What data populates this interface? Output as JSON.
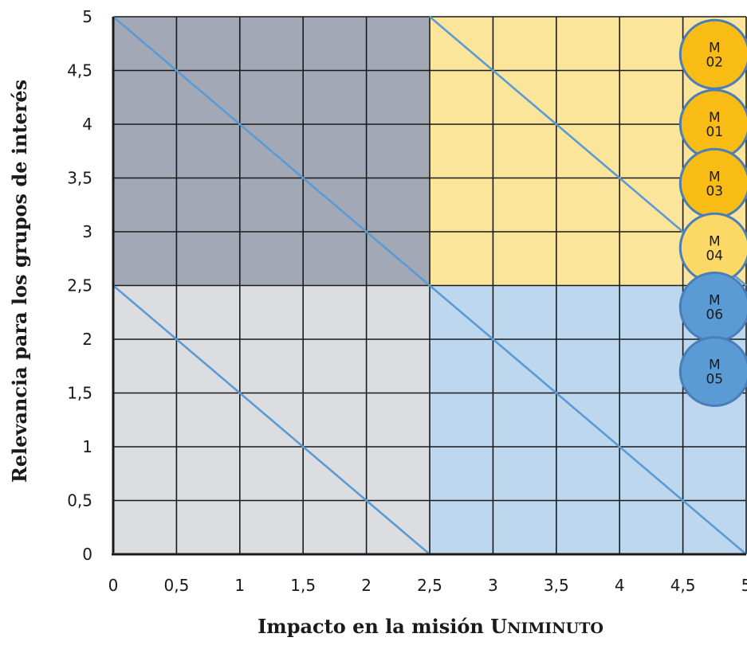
{
  "chart_data": {
    "type": "scatter",
    "xlabel": "Impacto en la misión Uniminuto",
    "xlabel_parts": [
      "Impacto en la misión ",
      "U",
      "NIMINUTO"
    ],
    "ylabel": "Relevancia para los grupos de interés",
    "xlim": [
      0,
      5
    ],
    "ylim": [
      0,
      5
    ],
    "grid": true,
    "grid_step": 0.5,
    "x_ticks": [
      "0",
      "0,5",
      "1",
      "1,5",
      "2",
      "2,5",
      "3",
      "3,5",
      "4",
      "4,5",
      "5"
    ],
    "y_ticks": [
      "0",
      "0,5",
      "1",
      "1,5",
      "2",
      "2,5",
      "3",
      "3,5",
      "4",
      "4,5",
      "5"
    ],
    "quadrants": [
      {
        "x": [
          0,
          2.5
        ],
        "y": [
          2.5,
          5
        ],
        "color": "#a2a8b5"
      },
      {
        "x": [
          2.5,
          5
        ],
        "y": [
          2.5,
          5
        ],
        "color": "#fbe59a"
      },
      {
        "x": [
          0,
          2.5
        ],
        "y": [
          0,
          2.5
        ],
        "color": "#dcdde0"
      },
      {
        "x": [
          2.5,
          5
        ],
        "y": [
          0,
          2.5
        ],
        "color": "#bcd7ee"
      }
    ],
    "diagonals": [
      {
        "from": [
          0,
          5
        ],
        "to": [
          2.5,
          2.5
        ]
      },
      {
        "from": [
          2.5,
          5
        ],
        "to": [
          5,
          2.5
        ]
      },
      {
        "from": [
          0,
          2.5
        ],
        "to": [
          2.5,
          0
        ]
      },
      {
        "from": [
          2.5,
          2.5
        ],
        "to": [
          5,
          0
        ]
      }
    ],
    "diagonal_color": "#5b9bd5",
    "points": [
      {
        "line1": "M",
        "line2": "02",
        "x": 4.75,
        "y": 4.65,
        "fill": "#f9bc15"
      },
      {
        "line1": "M",
        "line2": "01",
        "x": 4.75,
        "y": 4.0,
        "fill": "#f9bc15"
      },
      {
        "line1": "M",
        "line2": "03",
        "x": 4.75,
        "y": 3.45,
        "fill": "#f9bc15"
      },
      {
        "line1": "M",
        "line2": "04",
        "x": 4.75,
        "y": 2.85,
        "fill": "#fcd867"
      },
      {
        "line1": "M",
        "line2": "06",
        "x": 4.75,
        "y": 2.3,
        "fill": "#5b9bd5"
      },
      {
        "line1": "M",
        "line2": "05",
        "x": 4.75,
        "y": 1.7,
        "fill": "#5b9bd5"
      }
    ]
  }
}
